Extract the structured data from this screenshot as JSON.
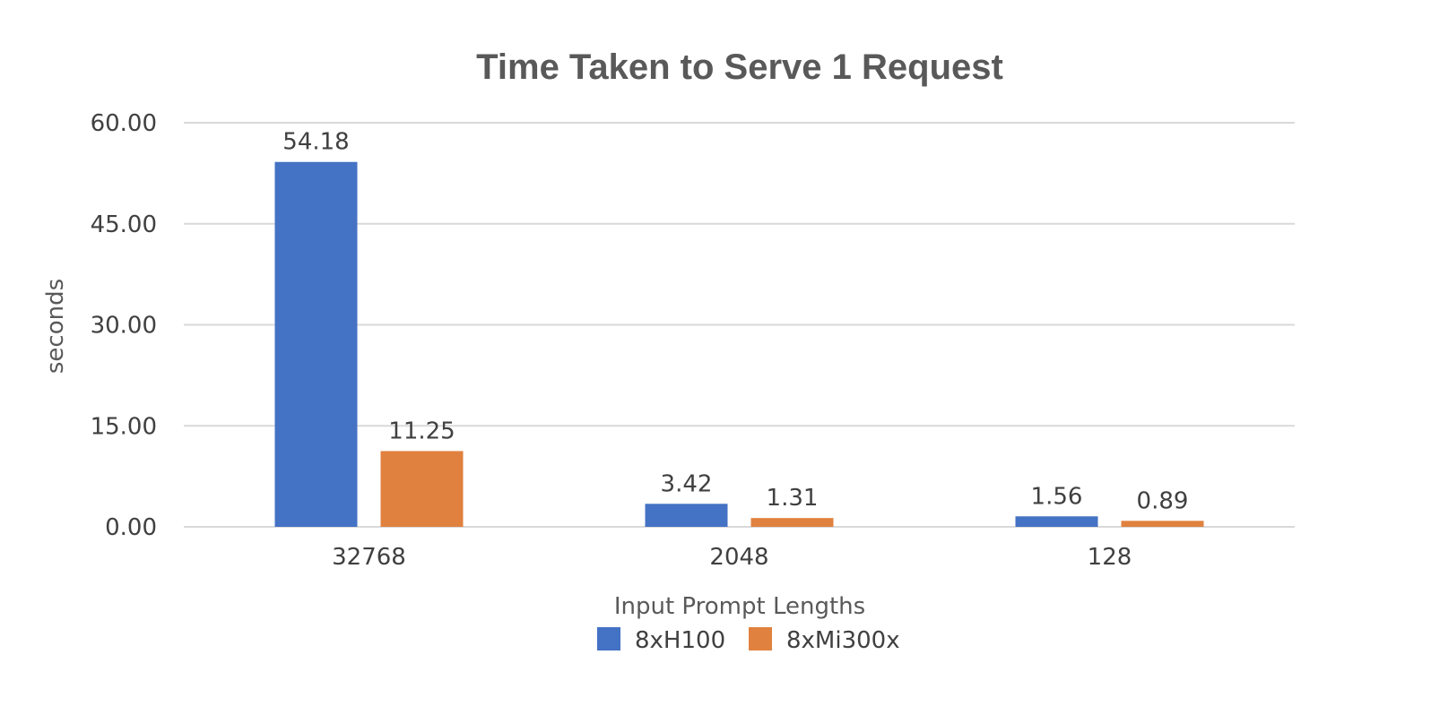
{
  "chart_data": {
    "type": "bar",
    "title": "Time Taken to Serve 1 Request",
    "xlabel": "Input Prompt Lengths",
    "ylabel": "seconds",
    "categories": [
      "32768",
      "2048",
      "128"
    ],
    "series": [
      {
        "name": "8xH100",
        "color": "#4472c4",
        "values": [
          54.18,
          3.42,
          1.56
        ],
        "labels": [
          "54.18",
          "3.42",
          "1.56"
        ]
      },
      {
        "name": "8xMi300x",
        "color": "#e0813f",
        "values": [
          11.25,
          1.31,
          0.89
        ],
        "labels": [
          "11.25",
          "1.31",
          "0.89"
        ]
      }
    ],
    "ylim": [
      0,
      60
    ],
    "yticks": [
      "0.00",
      "15.00",
      "30.00",
      "45.00",
      "60.00"
    ],
    "grid": true,
    "legend_position": "bottom"
  }
}
